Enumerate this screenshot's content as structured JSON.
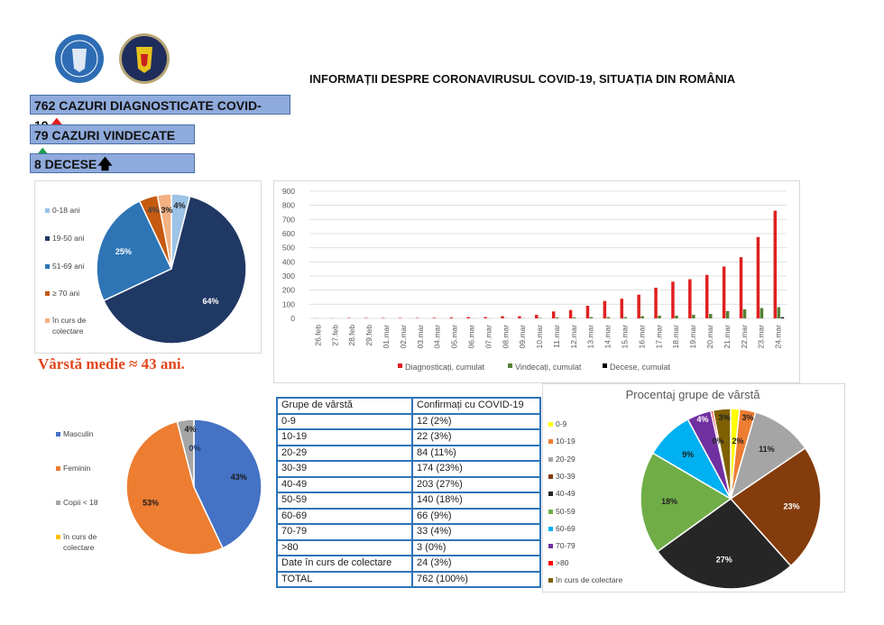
{
  "header": {
    "title": "INFORMAȚII DESPRE CORONAVIRUSUL COVID-19, SITUAȚIA DIN ROMÂNIA",
    "logos": [
      {
        "name": "guvernul-romaniei-seal",
        "text": "GUVERNUL ROMÂNIEI",
        "color": "#2e6db4"
      },
      {
        "name": "mai-seal",
        "color": "#1f2d5c"
      }
    ]
  },
  "kpis": [
    {
      "label": "762 CAZURI DIAGNOSTICATE COVID-19",
      "arrow": "🡅",
      "arrow_color": "#e02020"
    },
    {
      "label": "79 CAZURI VINDECATE",
      "arrow": "🡅",
      "arrow_color": "#1aa04a"
    },
    {
      "label": "8 DECESE",
      "arrow": "🡅",
      "arrow_color": "#000000"
    }
  ],
  "average_age": "Vârstă medie ≈ 43 ani.",
  "table": {
    "headers": [
      "Grupe de vârstă",
      "Confirmați cu COVID-19"
    ],
    "rows": [
      [
        "0-9",
        "12 (2%)"
      ],
      [
        "10-19",
        "22 (3%)"
      ],
      [
        "20-29",
        "84 (11%)"
      ],
      [
        "30-39",
        "174 (23%)"
      ],
      [
        "40-49",
        "203 (27%)"
      ],
      [
        "50-59",
        "140 (18%)"
      ],
      [
        "60-69",
        "66 (9%)"
      ],
      [
        "70-79",
        "33 (4%)"
      ],
      [
        ">80",
        "3 (0%)"
      ],
      [
        "Date în curs de colectare",
        "24 (3%)"
      ],
      [
        "TOTAL",
        "762 (100%)"
      ]
    ]
  },
  "chart_data": [
    {
      "type": "pie",
      "title": "",
      "legend_position": "left",
      "slices": [
        {
          "name": "0-18 ani",
          "value": 4,
          "label": "4%",
          "color": "#9dc3e6",
          "label_color": "#222"
        },
        {
          "name": "19-50 ani",
          "value": 64,
          "label": "64%",
          "color": "#203864",
          "label_color": "#fff"
        },
        {
          "name": "51-69 ani",
          "value": 25,
          "label": "25%",
          "color": "#2e75b6",
          "label_color": "#fff"
        },
        {
          "name": "≥ 70 ani",
          "value": 4,
          "label": "4%",
          "color": "#c55a11",
          "label_color": "#444"
        },
        {
          "name": "în curs de colectare",
          "value": 3,
          "label": "3%",
          "color": "#f4b183",
          "label_color": "#222"
        }
      ]
    },
    {
      "type": "bar",
      "title": "",
      "xlabel": "",
      "ylabel": "",
      "ylim": [
        0,
        900
      ],
      "yticks": [
        0,
        100,
        200,
        300,
        400,
        500,
        600,
        700,
        800,
        900
      ],
      "grid": true,
      "legend_position": "bottom",
      "categories": [
        "26.feb",
        "27.feb",
        "28.feb",
        "29.feb",
        "01.mar",
        "02.mar",
        "03.mar",
        "04.mar",
        "05.mar",
        "06.mar",
        "07.mar",
        "08.mar",
        "09.mar",
        "10.mar",
        "11.mar",
        "12.mar",
        "13.mar",
        "14.mar",
        "15.mar",
        "16.mar",
        "17.mar",
        "18.mar",
        "19.mar",
        "20.mar",
        "21.mar",
        "22.mar",
        "23.mar",
        "24.mar"
      ],
      "series": [
        {
          "name": "Diagnosticați, cumulat",
          "color": "#e02020",
          "values": [
            1,
            1,
            3,
            3,
            3,
            3,
            3,
            4,
            6,
            9,
            9,
            15,
            15,
            25,
            49,
            59,
            89,
            123,
            139,
            168,
            217,
            260,
            277,
            308,
            367,
            433,
            576,
            762
          ]
        },
        {
          "name": "Vindecați, cumulat",
          "color": "#548235",
          "values": [
            0,
            0,
            0,
            0,
            0,
            0,
            0,
            0,
            0,
            1,
            1,
            1,
            1,
            3,
            6,
            6,
            9,
            9,
            9,
            16,
            19,
            19,
            25,
            31,
            52,
            64,
            73,
            79
          ]
        },
        {
          "name": "Decese, cumulat",
          "color": "#000000",
          "values": [
            0,
            0,
            0,
            0,
            0,
            0,
            0,
            0,
            0,
            0,
            0,
            0,
            0,
            0,
            0,
            0,
            0,
            0,
            0,
            0,
            0,
            0,
            0,
            0,
            0,
            0,
            0,
            8
          ]
        }
      ]
    },
    {
      "type": "pie",
      "title": "",
      "legend_position": "left",
      "slices": [
        {
          "name": "Masculin",
          "value": 43,
          "label": "43%",
          "color": "#4472c4",
          "label_color": "#1a1a1a"
        },
        {
          "name": "Feminin",
          "value": 53,
          "label": "53%",
          "color": "#ed7d31",
          "label_color": "#1a1a1a"
        },
        {
          "name": "Copii < 18",
          "value": 4,
          "label": "4%",
          "color": "#a5a5a5",
          "label_color": "#1a1a1a"
        },
        {
          "name": "în curs de colectare",
          "value": 0,
          "label": "0%",
          "color": "#ffc000",
          "label_color": "#203864"
        }
      ]
    },
    {
      "type": "pie",
      "title": "Procentaj grupe de vârstă",
      "legend_position": "left",
      "slices": [
        {
          "name": "0-9",
          "value": 12,
          "label": "2%",
          "color": "#ffff00",
          "label_color": "#222"
        },
        {
          "name": "10-19",
          "value": 22,
          "label": "3%",
          "color": "#ed7d31",
          "label_color": "#222"
        },
        {
          "name": "20-29",
          "value": 84,
          "label": "11%",
          "color": "#a5a5a5",
          "label_color": "#222"
        },
        {
          "name": "30-39",
          "value": 174,
          "label": "23%",
          "color": "#843c0c",
          "label_color": "#fff"
        },
        {
          "name": "40-49",
          "value": 203,
          "label": "27%",
          "color": "#262626",
          "label_color": "#fff"
        },
        {
          "name": "50-59",
          "value": 140,
          "label": "18%",
          "color": "#70ad47",
          "label_color": "#222"
        },
        {
          "name": "60-69",
          "value": 66,
          "label": "9%",
          "color": "#00b0f0",
          "label_color": "#222"
        },
        {
          "name": "70-79",
          "value": 33,
          "label": "4%",
          "color": "#7030a0",
          "label_color": "#fff"
        },
        {
          "name": ">80",
          "value": 3,
          "label": "0%",
          "color": "#ff0000",
          "label_color": "#222"
        },
        {
          "name": "în curs de colectare",
          "value": 24,
          "label": "3%",
          "color": "#7f6000",
          "label_color": "#222"
        }
      ]
    }
  ]
}
